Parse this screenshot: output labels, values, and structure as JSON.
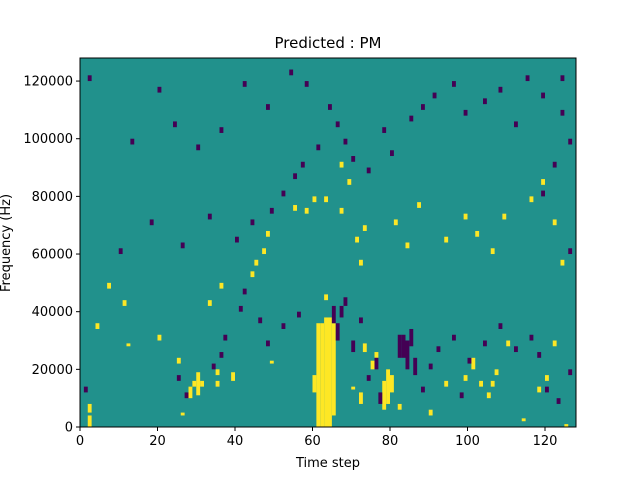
{
  "chart_data": {
    "type": "heatmap",
    "title": "Predicted : PM",
    "xlabel": "Time step",
    "ylabel": "Frequency (Hz)",
    "xlim": [
      0,
      128
    ],
    "ylim": [
      0,
      128000
    ],
    "x_ticks": [
      "0",
      "20",
      "40",
      "60",
      "80",
      "100",
      "120"
    ],
    "y_ticks": [
      "0",
      "20000",
      "40000",
      "60000",
      "80000",
      "100000",
      "120000"
    ],
    "colors": {
      "background": "#21918c",
      "high": "#fde725",
      "low": "#440154"
    },
    "levels": [
      -1,
      0,
      1
    ],
    "yellow_cells": [
      [
        2,
        0,
        4
      ],
      [
        26,
        4,
        1
      ],
      [
        2,
        5,
        3
      ],
      [
        28,
        10,
        4
      ],
      [
        30,
        11,
        8
      ],
      [
        29,
        14,
        2
      ],
      [
        31,
        14,
        2
      ],
      [
        35,
        14,
        2
      ],
      [
        39,
        16,
        3
      ],
      [
        35,
        18,
        2
      ],
      [
        49,
        22,
        1
      ],
      [
        60,
        12,
        6
      ],
      [
        61,
        0,
        36
      ],
      [
        62,
        0,
        36
      ],
      [
        63,
        0,
        38
      ],
      [
        64,
        0,
        38
      ],
      [
        65,
        4,
        32
      ],
      [
        63,
        44,
        2
      ],
      [
        70,
        13,
        1
      ],
      [
        72,
        8,
        4
      ],
      [
        73,
        26,
        3
      ],
      [
        75,
        20,
        3
      ],
      [
        76,
        24,
        2
      ],
      [
        78,
        6,
        10
      ],
      [
        79,
        8,
        12
      ],
      [
        80,
        12,
        6
      ],
      [
        82,
        6,
        2
      ],
      [
        90,
        4,
        2
      ],
      [
        94,
        14,
        2
      ],
      [
        99,
        16,
        2
      ],
      [
        101,
        20,
        4
      ],
      [
        103,
        14,
        2
      ],
      [
        105,
        10,
        2
      ],
      [
        106,
        14,
        2
      ],
      [
        107,
        18,
        2
      ],
      [
        110,
        28,
        2
      ],
      [
        114,
        2,
        1
      ],
      [
        118,
        12,
        2
      ],
      [
        120,
        16,
        2
      ],
      [
        122,
        28,
        2
      ],
      [
        125,
        0,
        1
      ],
      [
        4,
        34,
        2
      ],
      [
        7,
        48,
        2
      ],
      [
        11,
        42,
        2
      ],
      [
        12,
        28,
        1
      ],
      [
        20,
        30,
        2
      ],
      [
        25,
        22,
        2
      ],
      [
        33,
        42,
        2
      ],
      [
        36,
        48,
        2
      ],
      [
        44,
        52,
        2
      ],
      [
        45,
        56,
        2
      ],
      [
        47,
        60,
        2
      ],
      [
        48,
        66,
        2
      ],
      [
        55,
        75,
        2
      ],
      [
        58,
        74,
        2
      ],
      [
        60,
        78,
        2
      ],
      [
        63,
        78,
        2
      ],
      [
        67,
        74,
        2
      ],
      [
        67,
        90,
        2
      ],
      [
        69,
        84,
        2
      ],
      [
        71,
        64,
        2
      ],
      [
        72,
        56,
        2
      ],
      [
        73,
        68,
        2
      ],
      [
        81,
        70,
        2
      ],
      [
        84,
        62,
        2
      ],
      [
        87,
        76,
        2
      ],
      [
        94,
        64,
        2
      ],
      [
        99,
        72,
        2
      ],
      [
        102,
        66,
        2
      ],
      [
        106,
        60,
        2
      ],
      [
        109,
        72,
        2
      ],
      [
        116,
        78,
        2
      ],
      [
        119,
        84,
        2
      ],
      [
        122,
        70,
        2
      ],
      [
        124,
        56,
        2
      ]
    ],
    "purple_cells": [
      [
        1,
        12,
        2
      ],
      [
        27,
        10,
        2
      ],
      [
        25,
        16,
        2
      ],
      [
        34,
        20,
        2
      ],
      [
        36,
        24,
        2
      ],
      [
        37,
        30,
        2
      ],
      [
        41,
        40,
        2
      ],
      [
        42,
        46,
        2
      ],
      [
        46,
        36,
        2
      ],
      [
        48,
        28,
        2
      ],
      [
        52,
        34,
        2
      ],
      [
        56,
        38,
        2
      ],
      [
        65,
        36,
        6
      ],
      [
        66,
        30,
        6
      ],
      [
        67,
        38,
        4
      ],
      [
        68,
        42,
        3
      ],
      [
        70,
        26,
        4
      ],
      [
        72,
        36,
        2
      ],
      [
        74,
        16,
        2
      ],
      [
        76,
        20,
        4
      ],
      [
        77,
        8,
        4
      ],
      [
        82,
        24,
        8
      ],
      [
        83,
        24,
        8
      ],
      [
        84,
        20,
        10
      ],
      [
        85,
        28,
        6
      ],
      [
        86,
        18,
        6
      ],
      [
        88,
        12,
        2
      ],
      [
        90,
        20,
        2
      ],
      [
        92,
        26,
        2
      ],
      [
        96,
        30,
        2
      ],
      [
        98,
        10,
        2
      ],
      [
        100,
        22,
        2
      ],
      [
        104,
        28,
        2
      ],
      [
        108,
        34,
        2
      ],
      [
        112,
        26,
        2
      ],
      [
        116,
        30,
        2
      ],
      [
        118,
        24,
        2
      ],
      [
        120,
        12,
        2
      ],
      [
        123,
        8,
        2
      ],
      [
        126,
        18,
        2
      ],
      [
        10,
        60,
        2
      ],
      [
        18,
        70,
        2
      ],
      [
        26,
        62,
        2
      ],
      [
        33,
        72,
        2
      ],
      [
        40,
        64,
        2
      ],
      [
        44,
        70,
        2
      ],
      [
        49,
        74,
        2
      ],
      [
        52,
        80,
        2
      ],
      [
        55,
        86,
        2
      ],
      [
        57,
        90,
        2
      ],
      [
        61,
        96,
        2
      ],
      [
        64,
        110,
        2
      ],
      [
        66,
        104,
        2
      ],
      [
        68,
        98,
        2
      ],
      [
        70,
        92,
        2
      ],
      [
        74,
        88,
        2
      ],
      [
        78,
        102,
        2
      ],
      [
        80,
        94,
        2
      ],
      [
        85,
        106,
        2
      ],
      [
        88,
        110,
        2
      ],
      [
        91,
        114,
        2
      ],
      [
        96,
        118,
        2
      ],
      [
        99,
        108,
        2
      ],
      [
        104,
        112,
        2
      ],
      [
        108,
        116,
        2
      ],
      [
        112,
        104,
        2
      ],
      [
        115,
        120,
        2
      ],
      [
        119,
        114,
        2
      ],
      [
        124,
        120,
        2
      ],
      [
        124,
        108,
        2
      ],
      [
        126,
        98,
        2
      ],
      [
        122,
        90,
        2
      ],
      [
        119,
        80,
        2
      ],
      [
        126,
        60,
        2
      ],
      [
        2,
        120,
        2
      ],
      [
        13,
        98,
        2
      ],
      [
        20,
        116,
        2
      ],
      [
        24,
        104,
        2
      ],
      [
        30,
        96,
        2
      ],
      [
        36,
        102,
        2
      ],
      [
        42,
        118,
        2
      ],
      [
        48,
        110,
        2
      ],
      [
        54,
        122,
        2
      ],
      [
        58,
        118,
        2
      ]
    ]
  }
}
